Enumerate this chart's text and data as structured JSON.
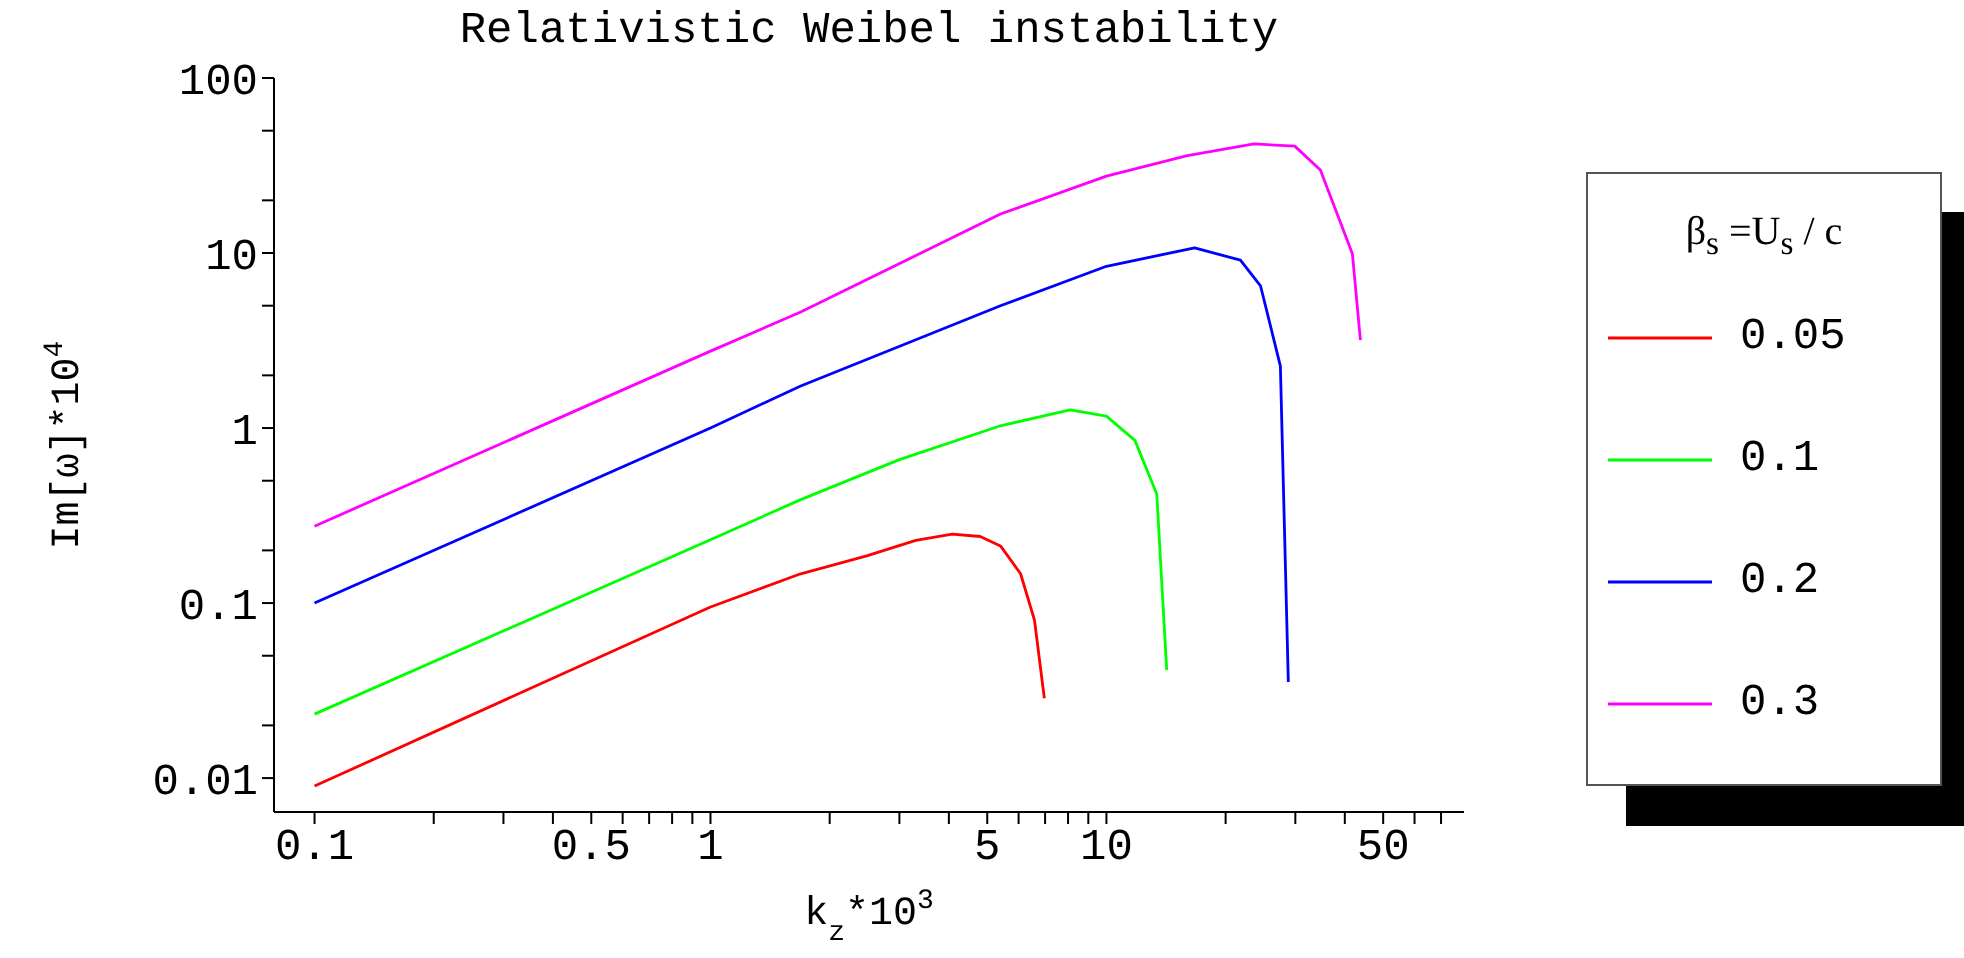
{
  "chart_data": {
    "type": "line",
    "title": "Relativistic Weibel instability",
    "xlabel": "k$_{z}$*10$^{3}$",
    "ylabel": "Im[ω]*10$^{4}$",
    "legend_title": "β$_{s}$ =U$_{s}$ / c",
    "log": "xy",
    "legend": "right",
    "grid": false,
    "marker": "none",
    "line_style": "solid",
    "xlim": [
      0.079,
      80
    ],
    "ylim": [
      0.0064,
      100
    ],
    "xticks": [
      0.1,
      {
        "value": 0.2,
        "label": null
      },
      {
        "value": 0.3,
        "label": null
      },
      {
        "value": 0.4,
        "label": null
      },
      0.5,
      {
        "value": 0.6,
        "label": null
      },
      {
        "value": 0.7,
        "label": null
      },
      {
        "value": 0.8,
        "label": null
      },
      {
        "value": 0.9,
        "label": null
      },
      1,
      {
        "value": 2,
        "label": null
      },
      {
        "value": 3,
        "label": null
      },
      {
        "value": 4,
        "label": null
      },
      5,
      {
        "value": 6,
        "label": null
      },
      {
        "value": 7,
        "label": null
      },
      {
        "value": 8,
        "label": null
      },
      {
        "value": 9,
        "label": null
      },
      10,
      {
        "value": 20,
        "label": null
      },
      {
        "value": 30,
        "label": null
      },
      {
        "value": 40,
        "label": null
      },
      50,
      {
        "value": 60,
        "label": null
      },
      {
        "value": 70,
        "label": null
      }
    ],
    "yticks": [
      0.01,
      {
        "value": 0.02,
        "label": null
      },
      {
        "value": 0.05,
        "label": null
      },
      0.1,
      {
        "value": 0.2,
        "label": null
      },
      {
        "value": 0.5,
        "label": null
      },
      1,
      {
        "value": 2,
        "label": null
      },
      {
        "value": 5,
        "label": null
      },
      10,
      {
        "value": 20,
        "label": null
      },
      {
        "value": 50,
        "label": null
      },
      100
    ],
    "series": [
      {
        "name": "0.05",
        "color": "#ff0000",
        "x": [
          0.1,
          1,
          1.69,
          2.48,
          3.3,
          4.08,
          4.8,
          5.4,
          6.07,
          6.58,
          6.97
        ],
        "values": [
          0.009,
          0.095,
          0.147,
          0.186,
          0.228,
          0.248,
          0.24,
          0.212,
          0.147,
          0.08,
          0.0286
        ]
      },
      {
        "name": "0.1",
        "color": "#00ff00",
        "x": [
          0.1,
          1,
          1.69,
          3,
          5.4,
          8.1,
          10,
          11.8,
          13.4,
          14.2
        ],
        "values": [
          0.0232,
          0.23,
          0.39,
          0.66,
          1.03,
          1.27,
          1.17,
          0.85,
          0.42,
          0.0414
        ]
      },
      {
        "name": "0.2",
        "color": "#0000ff",
        "x": [
          0.1,
          1,
          1.69,
          5.4,
          10,
          16.7,
          21.8,
          24.5,
          27.5,
          28.8
        ],
        "values": [
          0.1,
          1.0,
          1.74,
          5.0,
          8.4,
          10.7,
          9.1,
          6.5,
          2.26,
          0.0354
        ]
      },
      {
        "name": "0.3",
        "color": "#ff00ff",
        "x": [
          0.1,
          1,
          1.69,
          5.4,
          10,
          16,
          23.6,
          29.9,
          34.7,
          41.8,
          43.8
        ],
        "values": [
          0.275,
          2.75,
          4.6,
          16.7,
          27.5,
          36,
          42,
          40.8,
          29.8,
          9.9,
          3.18
        ]
      }
    ]
  }
}
